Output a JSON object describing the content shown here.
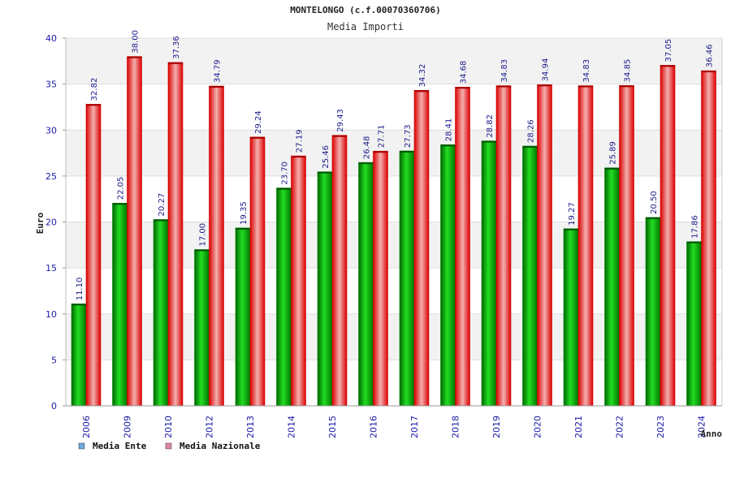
{
  "chart_data": {
    "type": "bar",
    "title": "MONTELONGO (c.f.00070360706)",
    "subtitle": "Media Importi",
    "xlabel": "Anno",
    "ylabel": "Euro",
    "ylim": [
      0,
      40
    ],
    "yticks": [
      0,
      5,
      10,
      15,
      20,
      25,
      30,
      35,
      40
    ],
    "grid": true,
    "legend_position": "bottom-left",
    "categories": [
      "2006",
      "2009",
      "2010",
      "2012",
      "2013",
      "2014",
      "2015",
      "2016",
      "2017",
      "2018",
      "2019",
      "2020",
      "2021",
      "2022",
      "2023",
      "2024"
    ],
    "series": [
      {
        "name": "Media Ente",
        "legend_color": "#6fa8dc",
        "bar_color": "#00aa00",
        "values": [
          11.1,
          22.05,
          20.27,
          17.0,
          19.35,
          23.7,
          25.46,
          26.48,
          27.73,
          28.41,
          28.82,
          28.26,
          19.27,
          25.89,
          20.5,
          17.86
        ],
        "labels": [
          "11.10",
          "22.05",
          "20.27",
          "17.00",
          "19.35",
          "23.70",
          "25.46",
          "26.48",
          "27.73",
          "28.41",
          "28.82",
          "28.26",
          "19.27",
          "25.89",
          "20.50",
          "17.86"
        ]
      },
      {
        "name": "Media Nazionale",
        "legend_color": "#dd88aa",
        "bar_color": "#ee1111",
        "values": [
          32.82,
          38.0,
          37.36,
          34.79,
          29.24,
          27.19,
          29.43,
          27.71,
          34.32,
          34.68,
          34.83,
          34.94,
          34.83,
          34.85,
          37.05,
          36.46
        ],
        "labels": [
          "32.82",
          "38.00",
          "37.36",
          "34.79",
          "29.24",
          "27.19",
          "29.43",
          "27.71",
          "34.32",
          "34.68",
          "34.83",
          "34.94",
          "34.83",
          "34.85",
          "37.05",
          "36.46"
        ]
      }
    ]
  }
}
